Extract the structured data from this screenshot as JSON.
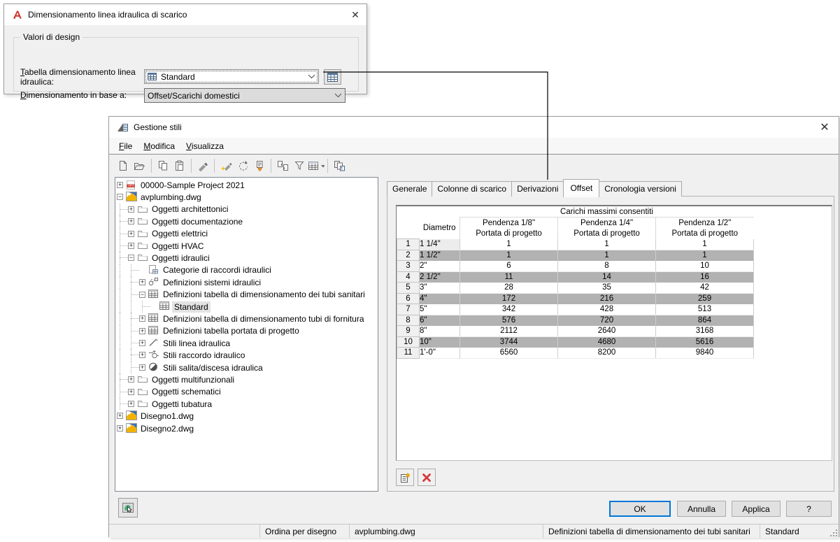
{
  "dialog": {
    "title": "Dimensionamento linea idraulica di scarico",
    "group_label": "Valori di design",
    "field1": {
      "label": "Tabella dimensionamento linea idraulica:",
      "value": "Standard"
    },
    "field2": {
      "label": "Dimensionamento in base a:",
      "value": "Offset/Scarichi domestici"
    }
  },
  "window": {
    "title": "Gestione stili",
    "menus": [
      "File",
      "Modifica",
      "Visualizza"
    ],
    "toolbar": [
      "new-drawing",
      "open-drawing",
      "sep",
      "copy",
      "paste",
      "sep",
      "edit-style",
      "sep",
      "new-style",
      "set-from",
      "purge-styles",
      "sep",
      "toggle-overrides",
      "filter-style",
      "table-view",
      "sep",
      "copy-between-drawings"
    ],
    "tree": [
      {
        "label": "00000-Sample Project 2021",
        "level": 0,
        "expand": "+",
        "icon": "project"
      },
      {
        "label": "avplumbing.dwg",
        "level": 0,
        "expand": "-",
        "icon": "dwg"
      },
      {
        "label": "Oggetti architettonici",
        "level": 1,
        "expand": "+",
        "icon": "folder"
      },
      {
        "label": "Oggetti documentazione",
        "level": 1,
        "expand": "+",
        "icon": "folder"
      },
      {
        "label": "Oggetti elettrici",
        "level": 1,
        "expand": "+",
        "icon": "folder"
      },
      {
        "label": "Oggetti HVAC",
        "level": 1,
        "expand": "+",
        "icon": "folder"
      },
      {
        "label": "Oggetti idraulici",
        "level": 1,
        "expand": "-",
        "icon": "folder"
      },
      {
        "label": "Categorie di raccordi idraulici",
        "level": 2,
        "expand": "",
        "icon": "category"
      },
      {
        "label": "Definizioni sistemi idraulici",
        "level": 2,
        "expand": "+",
        "icon": "system"
      },
      {
        "label": "Definizioni tabella di dimensionamento dei tubi sanitari",
        "level": 2,
        "expand": "-",
        "icon": "table"
      },
      {
        "label": "Standard",
        "level": 3,
        "expand": "",
        "icon": "table",
        "selected": true
      },
      {
        "label": "Definizioni tabella di dimensionamento tubi di fornitura",
        "level": 2,
        "expand": "+",
        "icon": "table"
      },
      {
        "label": "Definizioni tabella portata di progetto",
        "level": 2,
        "expand": "+",
        "icon": "table"
      },
      {
        "label": "Stili linea idraulica",
        "level": 2,
        "expand": "+",
        "icon": "line"
      },
      {
        "label": "Stili raccordo idraulico",
        "level": 2,
        "expand": "+",
        "icon": "fitting"
      },
      {
        "label": "Stili salita/discesa idraulica",
        "level": 2,
        "expand": "+",
        "icon": "risedrop"
      },
      {
        "label": "Oggetti multifunzionali",
        "level": 1,
        "expand": "+",
        "icon": "folder"
      },
      {
        "label": "Oggetti schematici",
        "level": 1,
        "expand": "+",
        "icon": "folder"
      },
      {
        "label": "Oggetti tubatura",
        "level": 1,
        "expand": "+",
        "icon": "folder"
      },
      {
        "label": "Disegno1.dwg",
        "level": 0,
        "expand": "+",
        "icon": "dwg"
      },
      {
        "label": "Disegno2.dwg",
        "level": 0,
        "expand": "+",
        "icon": "dwg"
      }
    ],
    "tabs": [
      "Generale",
      "Colonne di scarico",
      "Derivazioni",
      "Offset",
      "Cronologia versioni"
    ],
    "active_tab": "Offset",
    "table": {
      "span_header": "Carichi massimi consentiti",
      "col_diametro": "Diametro",
      "pendenza": [
        "Pendenza 1/8\"",
        "Pendenza 1/4\"",
        "Pendenza 1/2\""
      ],
      "sub": "Portata di progetto",
      "rows": [
        {
          "n": "1",
          "diametro": "1 1/4\"",
          "values": [
            "1",
            "1",
            "1"
          ]
        },
        {
          "n": "2",
          "diametro": "1 1/2\"",
          "values": [
            "1",
            "1",
            "1"
          ]
        },
        {
          "n": "3",
          "diametro": "2\"",
          "values": [
            "6",
            "8",
            "10"
          ]
        },
        {
          "n": "4",
          "diametro": "2 1/2\"",
          "values": [
            "11",
            "14",
            "16"
          ]
        },
        {
          "n": "5",
          "diametro": "3\"",
          "values": [
            "28",
            "35",
            "42"
          ]
        },
        {
          "n": "6",
          "diametro": "4\"",
          "values": [
            "172",
            "216",
            "259"
          ]
        },
        {
          "n": "7",
          "diametro": "5\"",
          "values": [
            "342",
            "428",
            "513"
          ]
        },
        {
          "n": "8",
          "diametro": "6\"",
          "values": [
            "576",
            "720",
            "864"
          ]
        },
        {
          "n": "9",
          "diametro": "8\"",
          "values": [
            "2112",
            "2640",
            "3168"
          ]
        },
        {
          "n": "10",
          "diametro": "10\"",
          "values": [
            "3744",
            "4680",
            "5616"
          ]
        },
        {
          "n": "11",
          "diametro": "1'-0\"",
          "values": [
            "6560",
            "8200",
            "9840"
          ]
        }
      ]
    },
    "buttons": {
      "ok": "OK",
      "cancel": "Annulla",
      "apply": "Applica",
      "help": "?"
    },
    "statusbar": {
      "sort": "Ordina per disegno",
      "drawing": "avplumbing.dwg",
      "node": "Definizioni tabella di dimensionamento dei tubi sanitari",
      "style": "Standard"
    }
  },
  "glyphs": {
    "close": "✕"
  }
}
